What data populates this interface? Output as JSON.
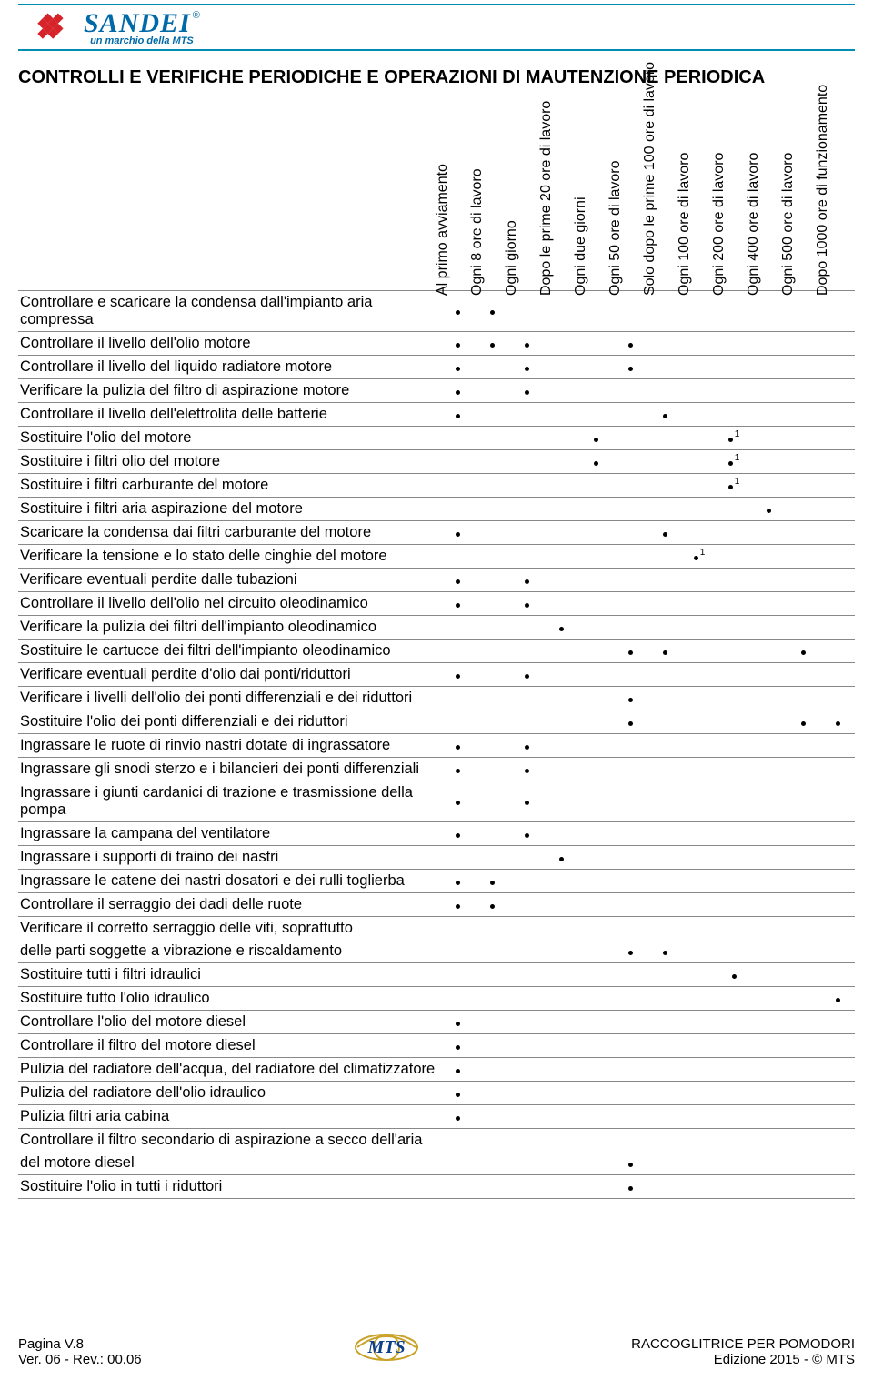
{
  "brand": {
    "name": "SANDEI",
    "tagline": "un marchio della MTS",
    "reg_mark": "®",
    "colors": {
      "border": "#008db3",
      "brand_red": "#d6232a",
      "brand_blue": "#0069a8"
    }
  },
  "title": "CONTROLLI E VERIFICHE PERIODICHE E OPERAZIONI DI MAUTENZIONE PERIODICA",
  "columns": [
    "Al primo avviamento",
    "Ogni 8 ore di lavoro",
    "Ogni giorno",
    "Dopo le prime 20 ore di lavoro",
    "Ogni due giorni",
    "Ogni 50 ore di lavoro",
    "Solo dopo le prime 100 ore di lavoro",
    "Ogni 100 ore di lavoro",
    "Ogni 200 ore di lavoro",
    "Ogni 400 ore di lavoro",
    "Ogni 500 ore di lavoro",
    "Dopo 1000 ore di funzionamento"
  ],
  "rows": [
    {
      "label": "Controllare e scaricare la condensa dall'impianto aria compressa",
      "marks": [
        "•",
        "•",
        "",
        "",
        "",
        "",
        "",
        "",
        "",
        "",
        "",
        ""
      ]
    },
    {
      "label": "Controllare il livello dell'olio motore",
      "marks": [
        "•",
        "•",
        "•",
        "",
        "",
        "•",
        "",
        "",
        "",
        "",
        "",
        ""
      ]
    },
    {
      "label": "Controllare il livello del liquido radiatore motore",
      "marks": [
        "•",
        "",
        "•",
        "",
        "",
        "•",
        "",
        "",
        "",
        "",
        "",
        ""
      ]
    },
    {
      "label": "Verificare la pulizia del filtro di aspirazione motore",
      "marks": [
        "•",
        "",
        "•",
        "",
        "",
        "",
        "",
        "",
        "",
        "",
        "",
        ""
      ]
    },
    {
      "label": "Controllare il livello dell'elettrolita delle batterie",
      "marks": [
        "•",
        "",
        "",
        "",
        "",
        "",
        "•",
        "",
        "",
        "",
        "",
        ""
      ]
    },
    {
      "label": "Sostituire l'olio del motore",
      "marks": [
        "",
        "",
        "",
        "",
        "•",
        "",
        "",
        "",
        "•1",
        "",
        "",
        ""
      ]
    },
    {
      "label": "Sostituire i filtri olio del motore",
      "marks": [
        "",
        "",
        "",
        "",
        "•",
        "",
        "",
        "",
        "•1",
        "",
        "",
        ""
      ]
    },
    {
      "label": "Sostituire i filtri carburante del motore",
      "marks": [
        "",
        "",
        "",
        "",
        "",
        "",
        "",
        "",
        "•1",
        "",
        "",
        ""
      ]
    },
    {
      "label": "Sostituire i filtri aria aspirazione del motore",
      "marks": [
        "",
        "",
        "",
        "",
        "",
        "",
        "",
        "",
        "",
        "•",
        "",
        ""
      ]
    },
    {
      "label": "Scaricare la condensa dai filtri carburante del motore",
      "marks": [
        "•",
        "",
        "",
        "",
        "",
        "",
        "•",
        "",
        "",
        "",
        "",
        ""
      ]
    },
    {
      "label": "Verificare la tensione e lo stato delle cinghie del motore",
      "marks": [
        "",
        "",
        "",
        "",
        "",
        "",
        "",
        "•1",
        "",
        "",
        "",
        ""
      ]
    },
    {
      "label": "Verificare eventuali perdite dalle tubazioni",
      "marks": [
        "•",
        "",
        "•",
        "",
        "",
        "",
        "",
        "",
        "",
        "",
        "",
        ""
      ]
    },
    {
      "label": "Controllare il livello dell'olio nel circuito oleodinamico",
      "marks": [
        "•",
        "",
        "•",
        "",
        "",
        "",
        "",
        "",
        "",
        "",
        "",
        ""
      ]
    },
    {
      "label": "Verificare la pulizia dei filtri dell'impianto oleodinamico",
      "marks": [
        "",
        "",
        "",
        "•",
        "",
        "",
        "",
        "",
        "",
        "",
        "",
        ""
      ]
    },
    {
      "label": "Sostituire le cartucce dei filtri dell'impianto oleodinamico",
      "marks": [
        "",
        "",
        "",
        "",
        "",
        "•",
        "•",
        "",
        "",
        "",
        "•",
        ""
      ]
    },
    {
      "label": "Verificare eventuali perdite d'olio dai ponti/riduttori",
      "marks": [
        "•",
        "",
        "•",
        "",
        "",
        "",
        "",
        "",
        "",
        "",
        "",
        ""
      ]
    },
    {
      "label": "Verificare i livelli dell'olio dei ponti differenziali e dei riduttori",
      "marks": [
        "",
        "",
        "",
        "",
        "",
        "•",
        "",
        "",
        "",
        "",
        "",
        ""
      ]
    },
    {
      "label": "Sostituire l'olio dei ponti differenziali e dei riduttori",
      "marks": [
        "",
        "",
        "",
        "",
        "",
        "•",
        "",
        "",
        "",
        "",
        "•",
        "•"
      ]
    },
    {
      "label": "Ingrassare le ruote di rinvio nastri dotate di ingrassatore",
      "marks": [
        "•",
        "",
        "•",
        "",
        "",
        "",
        "",
        "",
        "",
        "",
        "",
        ""
      ]
    },
    {
      "label": "Ingrassare gli snodi sterzo e i bilancieri dei ponti differenziali",
      "marks": [
        "•",
        "",
        "•",
        "",
        "",
        "",
        "",
        "",
        "",
        "",
        "",
        ""
      ]
    },
    {
      "label": "Ingrassare i giunti cardanici di trazione e trasmissione della pompa",
      "marks": [
        "•",
        "",
        "•",
        "",
        "",
        "",
        "",
        "",
        "",
        "",
        "",
        ""
      ]
    },
    {
      "label": "Ingrassare la campana del ventilatore",
      "marks": [
        "•",
        "",
        "•",
        "",
        "",
        "",
        "",
        "",
        "",
        "",
        "",
        ""
      ]
    },
    {
      "label": "Ingrassare i supporti di traino dei nastri",
      "marks": [
        "",
        "",
        "",
        "•",
        "",
        "",
        "",
        "",
        "",
        "",
        "",
        ""
      ]
    },
    {
      "label": "Ingrassare le catene dei nastri dosatori e dei rulli toglierba",
      "marks": [
        "•",
        "•",
        "",
        "",
        "",
        "",
        "",
        "",
        "",
        "",
        "",
        ""
      ]
    },
    {
      "label": "Controllare il serraggio dei dadi delle ruote",
      "marks": [
        "•",
        "•",
        "",
        "",
        "",
        "",
        "",
        "",
        "",
        "",
        "",
        ""
      ]
    },
    {
      "label": "Verificare il corretto serraggio delle viti, soprattutto",
      "noborder": true,
      "marks": [
        "",
        "",
        "",
        "",
        "",
        "",
        "",
        "",
        "",
        "",
        "",
        ""
      ]
    },
    {
      "label": "delle parti soggette a vibrazione e riscaldamento",
      "marks": [
        "",
        "",
        "",
        "",
        "",
        "•",
        "•",
        "",
        "",
        "",
        "",
        ""
      ]
    },
    {
      "label": "Sostituire tutti i filtri idraulici",
      "marks": [
        "",
        "",
        "",
        "",
        "",
        "",
        "",
        "",
        "•",
        "",
        "",
        ""
      ]
    },
    {
      "label": "Sostituire tutto l'olio idraulico",
      "marks": [
        "",
        "",
        "",
        "",
        "",
        "",
        "",
        "",
        "",
        "",
        "",
        "•"
      ]
    },
    {
      "label": "Controllare l'olio del motore diesel",
      "marks": [
        "•",
        "",
        "",
        "",
        "",
        "",
        "",
        "",
        "",
        "",
        "",
        ""
      ]
    },
    {
      "label": "Controllare il filtro del motore diesel",
      "marks": [
        "•",
        "",
        "",
        "",
        "",
        "",
        "",
        "",
        "",
        "",
        "",
        ""
      ]
    },
    {
      "label": "Pulizia del radiatore dell'acqua, del radiatore del climatizzatore",
      "marks": [
        "•",
        "",
        "",
        "",
        "",
        "",
        "",
        "",
        "",
        "",
        "",
        ""
      ]
    },
    {
      "label": "Pulizia del radiatore dell'olio idraulico",
      "marks": [
        "•",
        "",
        "",
        "",
        "",
        "",
        "",
        "",
        "",
        "",
        "",
        ""
      ]
    },
    {
      "label": "Pulizia filtri aria cabina",
      "marks": [
        "•",
        "",
        "",
        "",
        "",
        "",
        "",
        "",
        "",
        "",
        "",
        ""
      ]
    },
    {
      "label": "Controllare il filtro secondario di aspirazione a secco dell'aria",
      "noborder": true,
      "marks": [
        "",
        "",
        "",
        "",
        "",
        "",
        "",
        "",
        "",
        "",
        "",
        ""
      ]
    },
    {
      "label": "del motore diesel",
      "marks": [
        "",
        "",
        "",
        "",
        "",
        "•",
        "",
        "",
        "",
        "",
        "",
        ""
      ]
    },
    {
      "label": "Sostituire l'olio in tutti i riduttori",
      "marks": [
        "",
        "",
        "",
        "",
        "",
        "•",
        "",
        "",
        "",
        "",
        "",
        ""
      ]
    }
  ],
  "footer": {
    "left_line1": "Pagina V.8",
    "left_line2": "Ver. 06 - Rev.: 00.06",
    "right_line1": "RACCOGLITRICE PER POMODORI",
    "right_line2": "Edizione 2015 - © MTS",
    "mts_label": "MTS"
  }
}
